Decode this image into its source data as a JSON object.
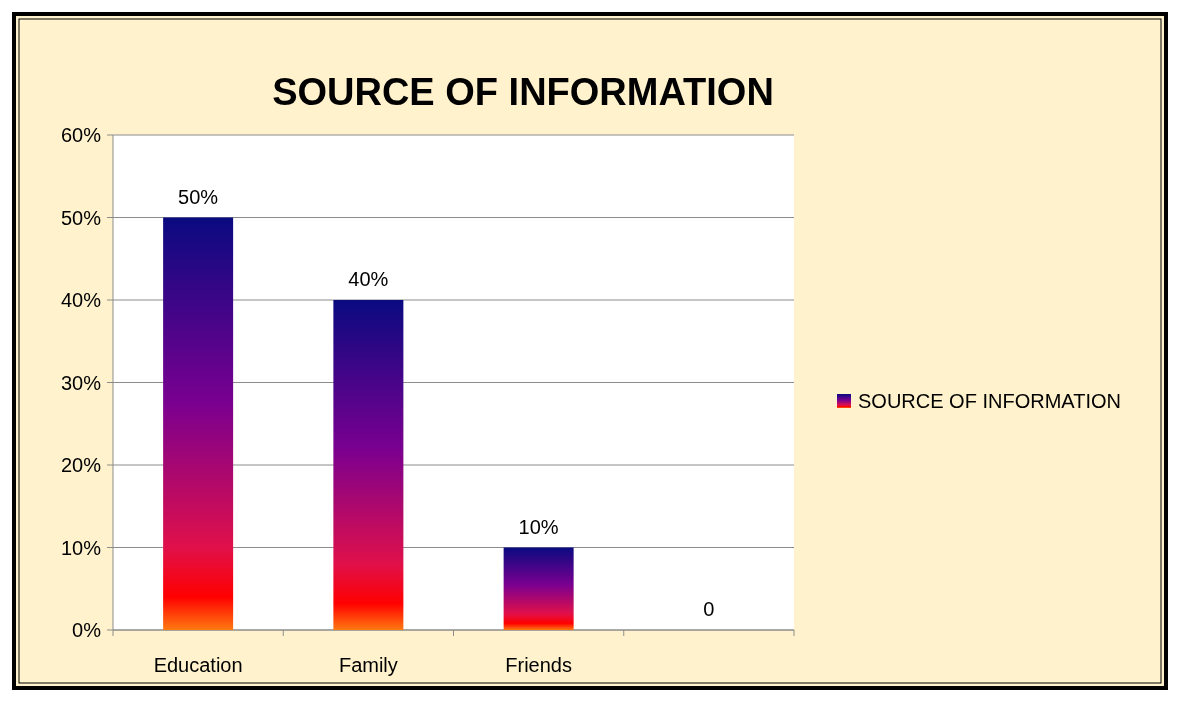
{
  "chart_data": {
    "type": "bar",
    "title": "SOURCE OF INFORMATION",
    "categories": [
      "Education",
      "Family",
      "Friends",
      null
    ],
    "series": [
      {
        "name": "SOURCE OF INFORMATION",
        "color": "#0a0a80",
        "values": [
          50,
          40,
          10,
          0
        ],
        "value_labels": [
          "50%",
          "40%",
          "10%",
          "0"
        ]
      }
    ],
    "ylim": [
      0,
      60
    ],
    "yticks": [
      {
        "value": 0,
        "label": "0%"
      },
      {
        "value": 10,
        "label": "10%"
      },
      {
        "value": 20,
        "label": "20%"
      },
      {
        "value": 30,
        "label": "30%"
      },
      {
        "value": 40,
        "label": "40%"
      },
      {
        "value": 50,
        "label": "50%"
      },
      {
        "value": 60,
        "label": "60%"
      }
    ],
    "grid": "y",
    "legend": "right"
  }
}
